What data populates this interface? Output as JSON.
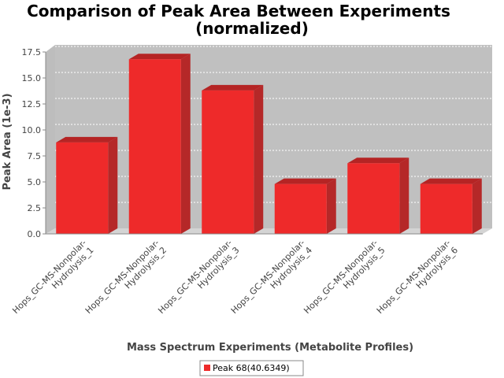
{
  "chart_data": {
    "type": "bar",
    "title": "Comparison of Peak Area Between Experiments",
    "subtitle": "(normalized)",
    "xlabel": "Mass Spectrum Experiments (Metabolite Profiles)",
    "ylabel": "Peak Area (1e-3)",
    "ylim": [
      0,
      17.5
    ],
    "yticks": [
      "0.0",
      "2.5",
      "5.0",
      "7.5",
      "10.0",
      "12.5",
      "15.0",
      "17.5"
    ],
    "grid": true,
    "legend_position": "bottom-center",
    "categories": [
      [
        "Hops_GC-MS-Nonpolar-",
        "Hydrolysis_1"
      ],
      [
        "Hops_GC-MS-Nonpolar-",
        "Hydrolysis_2"
      ],
      [
        "Hops_GC-MS-Nonpolar-",
        "Hydrolysis_3"
      ],
      [
        "Hops_GC-MS-Nonpolar-",
        "Hydrolysis_4"
      ],
      [
        "Hops_GC-MS-Nonpolar-",
        "Hydrolysis_5"
      ],
      [
        "Hops_GC-MS-Nonpolar-",
        "Hydrolysis_6"
      ]
    ],
    "series": [
      {
        "name": "Peak 68(40.6349)",
        "color": "#ee2a2a",
        "values": [
          8.8,
          16.8,
          13.8,
          4.8,
          6.8,
          4.8
        ]
      }
    ]
  }
}
